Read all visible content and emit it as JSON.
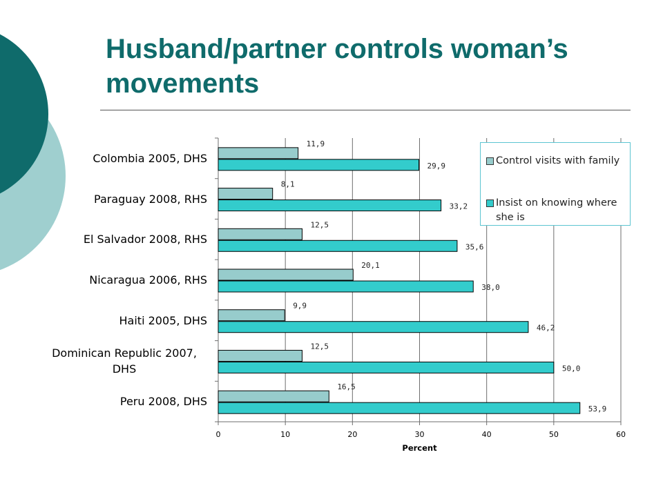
{
  "slide": {
    "title": "Husband/partner controls woman’s movements",
    "accent": "#0f6b6b"
  },
  "chart_data": {
    "type": "bar",
    "orientation": "horizontal",
    "categories": [
      "Colombia 2005, DHS",
      "Paraguay 2008, RHS",
      "El Salvador 2008, RHS",
      "Nicaragua 2006, RHS",
      "Haiti 2005, DHS",
      "Dominican Republic 2007, DHS",
      "Peru 2008, DHS"
    ],
    "series": [
      {
        "name": "Control visits with family",
        "color": "#97cccc",
        "values": [
          11.9,
          8.1,
          12.5,
          20.1,
          9.9,
          12.5,
          16.5
        ],
        "labels": [
          "11,9",
          "8,1",
          "12,5",
          "20,1",
          "9,9",
          "12,5",
          "16,5"
        ]
      },
      {
        "name": "Insist on knowing where she is",
        "color": "#33cccc",
        "values": [
          29.9,
          33.2,
          35.6,
          38.0,
          46.2,
          50.0,
          53.9
        ],
        "labels": [
          "29,9",
          "33,2",
          "35,6",
          "38,0",
          "46,2",
          "50,0",
          "53,9"
        ]
      }
    ],
    "xlabel": "Percent",
    "ylabel": "",
    "xlim": [
      0,
      60
    ],
    "xticks": [
      0,
      10,
      20,
      30,
      40,
      50,
      60
    ],
    "grid": "vertical",
    "legend_position": "top-right"
  }
}
